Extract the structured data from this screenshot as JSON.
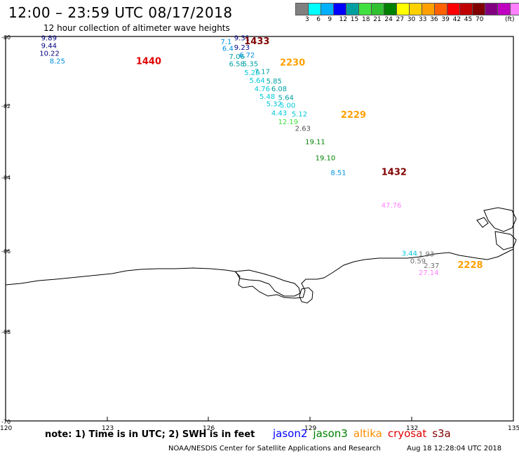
{
  "header": {
    "title": "12:00 – 23:59 UTC 08/17/2018",
    "subtitle": "12 hour collection of altimeter wave heights"
  },
  "colorbar": {
    "colors": [
      "#808080",
      "#00ffff",
      "#00b0ff",
      "#0000ff",
      "#00a0a0",
      "#40e040",
      "#30c030",
      "#008000",
      "#ffff00",
      "#ffd000",
      "#ffa000",
      "#ff6000",
      "#ff0000",
      "#c00000",
      "#800000",
      "#800080",
      "#c000c0",
      "#ff80ff",
      "#000000"
    ],
    "labels": [
      "3",
      "6",
      "9",
      "12",
      "15",
      "18",
      "21",
      "24",
      "27",
      "30",
      "33",
      "36",
      "39",
      "42",
      "45",
      "70"
    ],
    "unit": "(ft)"
  },
  "map": {
    "lon_range": [
      120,
      135
    ],
    "lat_range": [
      -70,
      -60
    ],
    "x_ticks": [
      "120",
      "123",
      "126",
      "129",
      "132",
      "135"
    ],
    "y_ticks": [
      "-60",
      "-62",
      "-64",
      "-66",
      "-68",
      "-70"
    ],
    "observations": [
      {
        "text": "9.89",
        "lon": 121.05,
        "lat": -60.1,
        "color": "#000080"
      },
      {
        "text": "9.44",
        "lon": 121.05,
        "lat": -60.3,
        "color": "#000080"
      },
      {
        "text": "10.22",
        "lon": 121.0,
        "lat": -60.5,
        "color": "#000080"
      },
      {
        "text": "8.25",
        "lon": 121.3,
        "lat": -60.7,
        "color": "#0090e0"
      },
      {
        "text": "1440",
        "lon": 123.85,
        "lat": -60.72,
        "color": "#e00000",
        "big": true
      },
      {
        "text": "7.1",
        "lon": 126.35,
        "lat": -60.2,
        "color": "#0090e0"
      },
      {
        "text": "9.31",
        "lon": 126.75,
        "lat": -60.1,
        "color": "#000080"
      },
      {
        "text": "1433",
        "lon": 127.05,
        "lat": -60.2,
        "color": "#800000",
        "big": true
      },
      {
        "text": "6.4",
        "lon": 126.4,
        "lat": -60.37,
        "color": "#0090e0"
      },
      {
        "text": "9.23",
        "lon": 126.75,
        "lat": -60.35,
        "color": "#000080"
      },
      {
        "text": "7.06",
        "lon": 126.6,
        "lat": -60.58,
        "color": "#00a0a0"
      },
      {
        "text": "6.72",
        "lon": 126.9,
        "lat": -60.55,
        "color": "#0090e0"
      },
      {
        "text": "6.58",
        "lon": 126.6,
        "lat": -60.78,
        "color": "#00a0a0"
      },
      {
        "text": "5.35",
        "lon": 127.0,
        "lat": -60.78,
        "color": "#00a0a0"
      },
      {
        "text": "2230",
        "lon": 128.1,
        "lat": -60.76,
        "color": "#ffa000",
        "big": true
      },
      {
        "text": "5.29",
        "lon": 127.05,
        "lat": -61.0,
        "color": "#00c8d8"
      },
      {
        "text": "7.17",
        "lon": 127.35,
        "lat": -60.98,
        "color": "#00a0a0"
      },
      {
        "text": "5.64",
        "lon": 127.2,
        "lat": -61.2,
        "color": "#00c8d8"
      },
      {
        "text": "5.85",
        "lon": 127.7,
        "lat": -61.22,
        "color": "#00a0a0"
      },
      {
        "text": "4.76",
        "lon": 127.35,
        "lat": -61.42,
        "color": "#00c8d8"
      },
      {
        "text": "6.08",
        "lon": 127.85,
        "lat": -61.42,
        "color": "#00a0a0"
      },
      {
        "text": "5.48",
        "lon": 127.5,
        "lat": -61.62,
        "color": "#00c8d8"
      },
      {
        "text": "5.64",
        "lon": 128.05,
        "lat": -61.65,
        "color": "#00a0a0"
      },
      {
        "text": "5.32",
        "lon": 127.7,
        "lat": -61.82,
        "color": "#00c8d8"
      },
      {
        "text": "5.00",
        "lon": 128.1,
        "lat": -61.85,
        "color": "#00c8d8"
      },
      {
        "text": "4.43",
        "lon": 127.85,
        "lat": -62.05,
        "color": "#00c8d8"
      },
      {
        "text": "5.12",
        "lon": 128.45,
        "lat": -62.08,
        "color": "#00c8d8"
      },
      {
        "text": "2229",
        "lon": 129.9,
        "lat": -62.12,
        "color": "#ffa000",
        "big": true
      },
      {
        "text": "12.19",
        "lon": 128.05,
        "lat": -62.28,
        "color": "#40e040"
      },
      {
        "text": "2.63",
        "lon": 128.55,
        "lat": -62.45,
        "color": "#505050"
      },
      {
        "text": "19.11",
        "lon": 128.85,
        "lat": -62.8,
        "color": "#008000"
      },
      {
        "text": "19.10",
        "lon": 129.15,
        "lat": -63.22,
        "color": "#008000"
      },
      {
        "text": "8.51",
        "lon": 129.6,
        "lat": -63.6,
        "color": "#0090e0"
      },
      {
        "text": "1432",
        "lon": 131.1,
        "lat": -63.6,
        "color": "#800000",
        "big": true
      },
      {
        "text": "47.76",
        "lon": 131.1,
        "lat": -64.45,
        "color": "#ff80ff"
      },
      {
        "text": "3.44",
        "lon": 131.7,
        "lat": -65.7,
        "color": "#00c8d8"
      },
      {
        "text": "1.93",
        "lon": 132.2,
        "lat": -65.72,
        "color": "#707070"
      },
      {
        "text": "0.59",
        "lon": 131.95,
        "lat": -65.9,
        "color": "#707070"
      },
      {
        "text": "2.37",
        "lon": 132.35,
        "lat": -66.02,
        "color": "#707070"
      },
      {
        "text": "2228",
        "lon": 133.35,
        "lat": -66.02,
        "color": "#ffa000",
        "big": true
      },
      {
        "text": "27.14",
        "lon": 132.2,
        "lat": -66.2,
        "color": "#ff80ff"
      }
    ]
  },
  "footer": {
    "note": "note: 1) Time is in UTC; 2) SWH is in feet",
    "satellites": [
      {
        "name": "jason2",
        "color": "#0000ff"
      },
      {
        "name": "jason3",
        "color": "#008000"
      },
      {
        "name": "altika",
        "color": "#ff8c00"
      },
      {
        "name": "cryosat",
        "color": "#e00000"
      },
      {
        "name": "s3a",
        "color": "#800000"
      }
    ],
    "credit": "NOAA/NESDIS Center for Satellite Applications and Research",
    "timestamp": "Aug 18 12:28:04 UTC 2018"
  }
}
